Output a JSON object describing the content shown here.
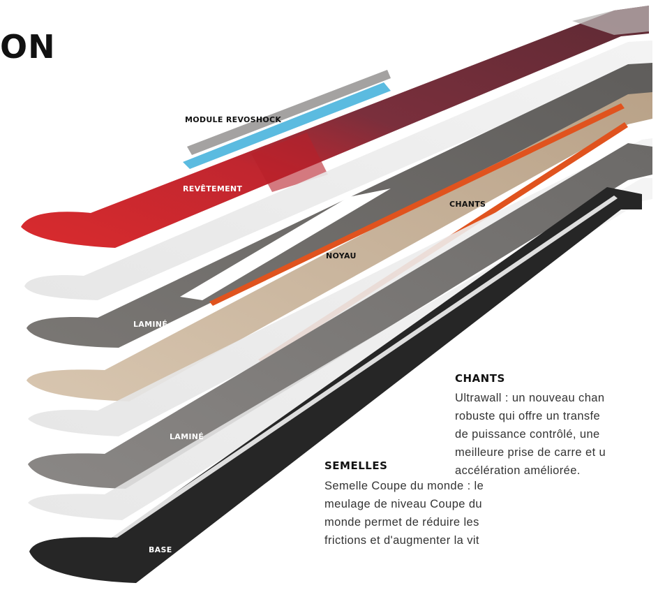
{
  "heading": "ON",
  "labels": {
    "module": "MODULE REVOSHOCK",
    "revetement": "REVÊTEMENT",
    "chants": "CHANTS",
    "noyau": "NOYAU",
    "lamine_top": "LAMINÉ",
    "lamine_bottom": "LAMINÉ",
    "base": "BASE"
  },
  "sections": {
    "chants": {
      "title": "CHANTS",
      "lines": [
        "Ultrawall : un nouveau chan",
        "robuste qui offre un transfe",
        "de puissance contrôlé, une",
        "meilleure prise de carre et u",
        "accélération améliorée."
      ]
    },
    "semelles": {
      "title": "SEMELLES",
      "lines": [
        "Semelle Coupe du monde : le",
        "meulage de niveau Coupe du",
        "monde permet de réduire les",
        "frictions et d'augmenter la vit"
      ]
    }
  },
  "colors": {
    "topsheet_red": "#d92b2e",
    "topsheet_maroon": "#6e2d3a",
    "revoshock_blue": "#5bbbe0",
    "laminate_grey": "#6f6c69",
    "core_wood": "#c9b49c",
    "edge_orange": "#e0531e",
    "base_black": "#262626"
  }
}
